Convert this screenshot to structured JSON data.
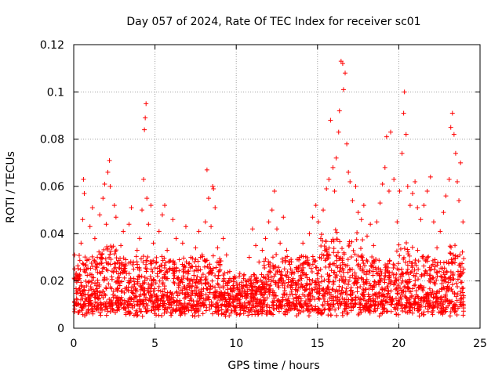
{
  "chart_data": {
    "type": "scatter",
    "title": "Day 057 of 2024, Rate Of TEC Index for receiver sc01",
    "xlabel": "GPS time / hours",
    "ylabel": "ROTI / TECUs",
    "xlim": [
      0,
      25
    ],
    "ylim": [
      0,
      0.12
    ],
    "xticks": [
      0,
      5,
      10,
      15,
      20,
      25
    ],
    "xtick_labels": [
      "0",
      "5",
      "10",
      "15",
      "20",
      "25"
    ],
    "yticks": [
      0,
      0.02,
      0.04,
      0.06,
      0.08,
      0.1,
      0.12
    ],
    "ytick_labels": [
      "0",
      "0.02",
      "0.04",
      "0.06",
      "0.08",
      "0.1",
      "0.12"
    ],
    "grid": true,
    "marker": "+",
    "color": "#ff0000",
    "series": [
      {
        "name": "ROTI",
        "points": [
          [
            0.05,
            0.031
          ],
          [
            0.2,
            0.012
          ],
          [
            0.3,
            0.022
          ],
          [
            0.45,
            0.036
          ],
          [
            0.55,
            0.046
          ],
          [
            0.6,
            0.063
          ],
          [
            0.65,
            0.057
          ],
          [
            0.8,
            0.025
          ],
          [
            0.9,
            0.013
          ],
          [
            1.0,
            0.043
          ],
          [
            1.15,
            0.051
          ],
          [
            1.3,
            0.038
          ],
          [
            1.45,
            0.027
          ],
          [
            1.6,
            0.048
          ],
          [
            1.7,
            0.03
          ],
          [
            1.8,
            0.055
          ],
          [
            1.9,
            0.061
          ],
          [
            2.0,
            0.044
          ],
          [
            2.1,
            0.066
          ],
          [
            2.2,
            0.071
          ],
          [
            2.25,
            0.06
          ],
          [
            2.35,
            0.034
          ],
          [
            2.5,
            0.052
          ],
          [
            2.6,
            0.047
          ],
          [
            2.75,
            0.023
          ],
          [
            2.9,
            0.035
          ],
          [
            3.05,
            0.041
          ],
          [
            3.2,
            0.029
          ],
          [
            3.4,
            0.044
          ],
          [
            3.55,
            0.051
          ],
          [
            3.7,
            0.021
          ],
          [
            3.9,
            0.033
          ],
          [
            4.05,
            0.038
          ],
          [
            4.2,
            0.05
          ],
          [
            4.3,
            0.063
          ],
          [
            4.35,
            0.084
          ],
          [
            4.4,
            0.089
          ],
          [
            4.45,
            0.095
          ],
          [
            4.5,
            0.055
          ],
          [
            4.6,
            0.044
          ],
          [
            4.75,
            0.052
          ],
          [
            4.9,
            0.036
          ],
          [
            5.1,
            0.028
          ],
          [
            5.25,
            0.041
          ],
          [
            5.45,
            0.048
          ],
          [
            5.6,
            0.052
          ],
          [
            5.75,
            0.033
          ],
          [
            5.9,
            0.025
          ],
          [
            6.1,
            0.046
          ],
          [
            6.3,
            0.038
          ],
          [
            6.5,
            0.029
          ],
          [
            6.7,
            0.036
          ],
          [
            6.9,
            0.043
          ],
          [
            7.1,
            0.019
          ],
          [
            7.3,
            0.026
          ],
          [
            7.5,
            0.034
          ],
          [
            7.7,
            0.041
          ],
          [
            7.9,
            0.031
          ],
          [
            8.1,
            0.045
          ],
          [
            8.2,
            0.067
          ],
          [
            8.3,
            0.055
          ],
          [
            8.45,
            0.043
          ],
          [
            8.55,
            0.06
          ],
          [
            8.6,
            0.059
          ],
          [
            8.7,
            0.051
          ],
          [
            8.85,
            0.034
          ],
          [
            9.0,
            0.027
          ],
          [
            9.2,
            0.038
          ],
          [
            9.4,
            0.031
          ],
          [
            9.6,
            0.024
          ],
          [
            9.8,
            0.018
          ],
          [
            10.0,
            0.014
          ],
          [
            10.2,
            0.012
          ],
          [
            10.45,
            0.021
          ],
          [
            10.6,
            0.018
          ],
          [
            10.8,
            0.03
          ],
          [
            11.0,
            0.042
          ],
          [
            11.2,
            0.035
          ],
          [
            11.4,
            0.028
          ],
          [
            11.6,
            0.033
          ],
          [
            11.8,
            0.038
          ],
          [
            12.0,
            0.045
          ],
          [
            12.2,
            0.05
          ],
          [
            12.35,
            0.058
          ],
          [
            12.5,
            0.042
          ],
          [
            12.7,
            0.036
          ],
          [
            12.9,
            0.047
          ],
          [
            13.1,
            0.033
          ],
          [
            13.3,
            0.027
          ],
          [
            13.5,
            0.021
          ],
          [
            13.7,
            0.025
          ],
          [
            13.9,
            0.03
          ],
          [
            14.1,
            0.036
          ],
          [
            14.3,
            0.028
          ],
          [
            14.5,
            0.04
          ],
          [
            14.7,
            0.047
          ],
          [
            14.9,
            0.052
          ],
          [
            15.05,
            0.045
          ],
          [
            15.2,
            0.038
          ],
          [
            15.35,
            0.05
          ],
          [
            15.55,
            0.059
          ],
          [
            15.7,
            0.063
          ],
          [
            15.8,
            0.088
          ],
          [
            15.95,
            0.068
          ],
          [
            16.05,
            0.058
          ],
          [
            16.15,
            0.072
          ],
          [
            16.3,
            0.083
          ],
          [
            16.35,
            0.092
          ],
          [
            16.45,
            0.113
          ],
          [
            16.55,
            0.112
          ],
          [
            16.6,
            0.101
          ],
          [
            16.7,
            0.108
          ],
          [
            16.8,
            0.078
          ],
          [
            16.9,
            0.066
          ],
          [
            17.0,
            0.062
          ],
          [
            17.15,
            0.054
          ],
          [
            17.35,
            0.06
          ],
          [
            17.5,
            0.049
          ],
          [
            17.7,
            0.046
          ],
          [
            17.85,
            0.052
          ],
          [
            18.05,
            0.039
          ],
          [
            18.25,
            0.044
          ],
          [
            18.45,
            0.035
          ],
          [
            18.65,
            0.045
          ],
          [
            18.85,
            0.053
          ],
          [
            19.0,
            0.061
          ],
          [
            19.15,
            0.068
          ],
          [
            19.25,
            0.081
          ],
          [
            19.4,
            0.058
          ],
          [
            19.5,
            0.083
          ],
          [
            19.7,
            0.063
          ],
          [
            19.9,
            0.045
          ],
          [
            20.05,
            0.058
          ],
          [
            20.2,
            0.074
          ],
          [
            20.3,
            0.091
          ],
          [
            20.35,
            0.1
          ],
          [
            20.45,
            0.082
          ],
          [
            20.55,
            0.06
          ],
          [
            20.7,
            0.052
          ],
          [
            20.85,
            0.057
          ],
          [
            21.0,
            0.062
          ],
          [
            21.15,
            0.051
          ],
          [
            21.35,
            0.046
          ],
          [
            21.55,
            0.052
          ],
          [
            21.75,
            0.058
          ],
          [
            21.95,
            0.064
          ],
          [
            22.15,
            0.045
          ],
          [
            22.35,
            0.034
          ],
          [
            22.55,
            0.041
          ],
          [
            22.75,
            0.049
          ],
          [
            22.9,
            0.056
          ],
          [
            23.1,
            0.063
          ],
          [
            23.2,
            0.085
          ],
          [
            23.3,
            0.091
          ],
          [
            23.4,
            0.082
          ],
          [
            23.5,
            0.074
          ],
          [
            23.6,
            0.062
          ],
          [
            23.7,
            0.054
          ],
          [
            23.8,
            0.07
          ],
          [
            23.95,
            0.045
          ]
        ]
      }
    ]
  }
}
